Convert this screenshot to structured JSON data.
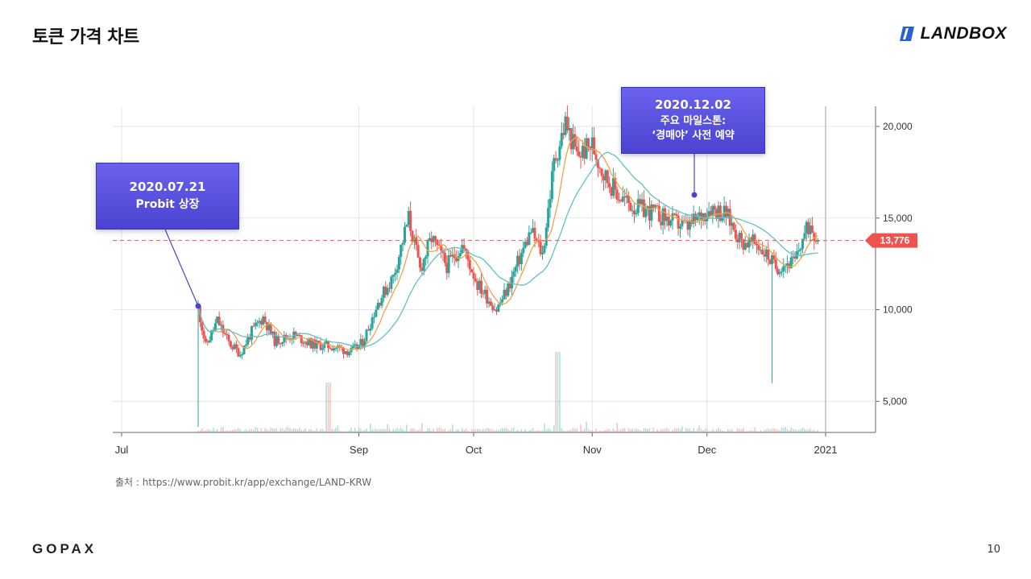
{
  "slide": {
    "title": "토큰 가격 차트",
    "brand": "LANDBOX",
    "footer_logo": "GOPAX",
    "page_number": "10",
    "source_note": "출처 : https://www.probit.kr/app/exchange/LAND-KRW"
  },
  "colors": {
    "up": "#26a69a",
    "down": "#ef5350",
    "ma_fast": "#f0a24b",
    "ma_slow": "#5fc1c8",
    "current_line": "#ef5350",
    "callout_bg": "#5a52e0",
    "brand_accent": "#2a5fd8"
  },
  "annotations": [
    {
      "date": "2020.07.21",
      "text": "Probit 상장"
    },
    {
      "date": "2020.12.02",
      "line1": "주요 마일스톤:",
      "line2": "‘경매야’ 사전 예약"
    }
  ],
  "chart_data": {
    "type": "candlestick",
    "title": "",
    "xlabel": "",
    "ylabel": "",
    "x_tick_labels": [
      "Jul",
      "Sep",
      "Oct",
      "Nov",
      "Dec",
      "2021"
    ],
    "y_tick_labels": [
      "5,000",
      "10,000",
      "15,000",
      "20,000"
    ],
    "y_ticks": [
      5000,
      10000,
      15000,
      20000
    ],
    "ylim": [
      3300,
      21100
    ],
    "x_range": [
      "2020-07-01",
      "2020-12-31"
    ],
    "current_price": 13776,
    "current_price_label": "13,776",
    "grid": true,
    "price_path": [
      [
        "2020-07-21",
        10100
      ],
      [
        "2020-07-23",
        8000
      ],
      [
        "2020-07-26",
        9400
      ],
      [
        "2020-07-29",
        8200
      ],
      [
        "2020-08-01",
        7600
      ],
      [
        "2020-08-04",
        8800
      ],
      [
        "2020-08-07",
        9600
      ],
      [
        "2020-08-10",
        8300
      ],
      [
        "2020-08-15",
        8600
      ],
      [
        "2020-08-20",
        8100
      ],
      [
        "2020-08-25",
        8000
      ],
      [
        "2020-08-30",
        7700
      ],
      [
        "2020-09-02",
        8200
      ],
      [
        "2020-09-06",
        10400
      ],
      [
        "2020-09-10",
        11800
      ],
      [
        "2020-09-14",
        15000
      ],
      [
        "2020-09-17",
        12200
      ],
      [
        "2020-09-20",
        13900
      ],
      [
        "2020-09-24",
        12400
      ],
      [
        "2020-09-28",
        13500
      ],
      [
        "2020-10-02",
        11400
      ],
      [
        "2020-10-07",
        10000
      ],
      [
        "2020-10-10",
        11200
      ],
      [
        "2020-10-13",
        12800
      ],
      [
        "2020-10-16",
        14300
      ],
      [
        "2020-10-19",
        13000
      ],
      [
        "2020-10-22",
        18000
      ],
      [
        "2020-10-25",
        20200
      ],
      [
        "2020-10-28",
        18400
      ],
      [
        "2020-11-01",
        19000
      ],
      [
        "2020-11-04",
        17400
      ],
      [
        "2020-11-08",
        16200
      ],
      [
        "2020-11-12",
        15600
      ],
      [
        "2020-11-17",
        15300
      ],
      [
        "2020-11-22",
        14800
      ],
      [
        "2020-11-26",
        14500
      ],
      [
        "2020-12-02",
        15600
      ],
      [
        "2020-12-06",
        15200
      ],
      [
        "2020-12-10",
        13700
      ],
      [
        "2020-12-14",
        13600
      ],
      [
        "2020-12-17",
        12900
      ],
      [
        "2020-12-19",
        12300
      ],
      [
        "2020-12-21",
        12500
      ],
      [
        "2020-12-24",
        12600
      ],
      [
        "2020-12-26",
        13900
      ],
      [
        "2020-12-28",
        14700
      ],
      [
        "2020-12-30",
        13776
      ]
    ],
    "wicks_extremes": {
      "2020-07-21_low": 3600,
      "2020-12-18_low": 6000,
      "2020-10-25_high": 20800
    },
    "series": [
      {
        "name": "",
        "kind": "candles"
      },
      {
        "name": "",
        "kind": "moving_average_fast"
      },
      {
        "name": "",
        "kind": "moving_average_slow"
      },
      {
        "name": "",
        "kind": "volume"
      }
    ]
  }
}
